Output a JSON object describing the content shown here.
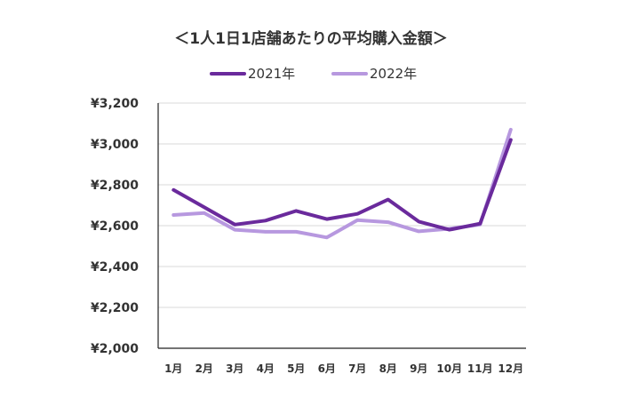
{
  "chart_data": {
    "type": "line",
    "title": "＜1人1日1店舗あたりの平均購入金額＞",
    "xlabel": "",
    "ylabel": "",
    "categories": [
      "1月",
      "2月",
      "3月",
      "4月",
      "5月",
      "6月",
      "7月",
      "8月",
      "9月",
      "10月",
      "11月",
      "12月"
    ],
    "ylim": [
      2000,
      3200
    ],
    "y_ticks": [
      2000,
      2200,
      2400,
      2600,
      2800,
      3000,
      3200
    ],
    "y_tick_labels": [
      "¥2,000",
      "¥2,200",
      "¥2,400",
      "¥2,600",
      "¥2,800",
      "¥3,000",
      "¥3,200"
    ],
    "grid": true,
    "legend_position": "top-center",
    "series": [
      {
        "name": "2021年",
        "color": "#6a2a9c",
        "values": [
          2775,
          2690,
          2605,
          2625,
          2672,
          2632,
          2658,
          2728,
          2620,
          2580,
          2610,
          3020
        ]
      },
      {
        "name": "2022年",
        "color": "#b798df",
        "values": [
          2652,
          2662,
          2580,
          2570,
          2570,
          2542,
          2627,
          2617,
          2572,
          2585,
          2605,
          3070
        ]
      }
    ]
  }
}
